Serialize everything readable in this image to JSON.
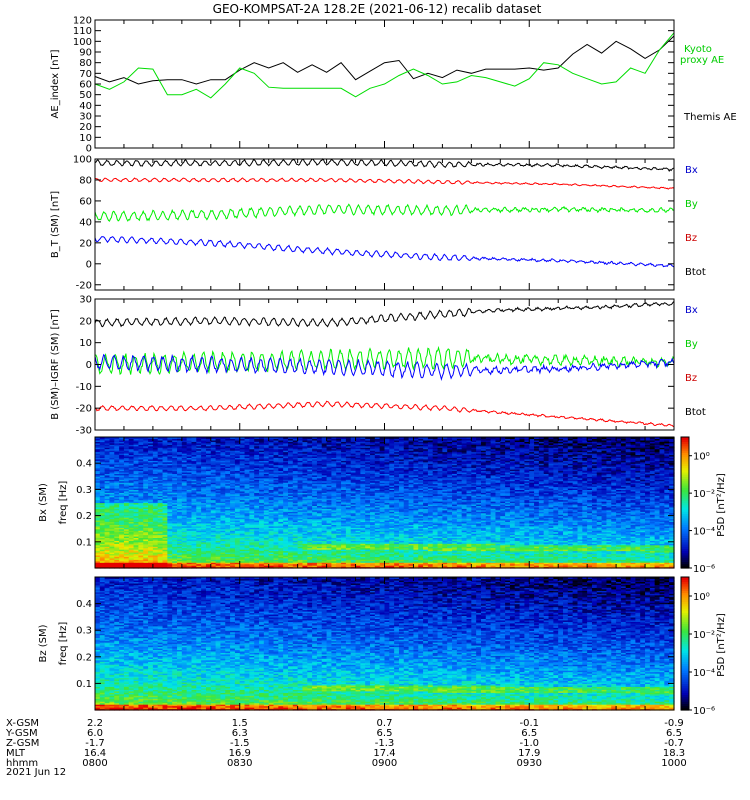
{
  "title": "GEO-KOMPSAT-2A 128.2E (2021-06-12) recalib dataset",
  "date_label": "2021 Jun 12",
  "colorbar": {
    "label": "PSD [nT²/Hz]",
    "ticks": [
      "10⁰",
      "10⁻²",
      "10⁻⁴",
      "10⁻⁶"
    ]
  },
  "chart_data": [
    {
      "id": "ae",
      "type": "line",
      "ylabel": "AE_index [nT]",
      "ylim": [
        0,
        120
      ],
      "yticks": [
        0,
        10,
        20,
        30,
        40,
        50,
        60,
        70,
        80,
        90,
        100,
        110,
        120
      ],
      "x_range_hours": [
        8.0,
        10.0
      ],
      "series": [
        {
          "name": "Themis AE",
          "color": "#000000",
          "points": [
            [
              8.0,
              67
            ],
            [
              8.05,
              62
            ],
            [
              8.1,
              66
            ],
            [
              8.15,
              60
            ],
            [
              8.2,
              63
            ],
            [
              8.25,
              64
            ],
            [
              8.3,
              64
            ],
            [
              8.35,
              60
            ],
            [
              8.4,
              64
            ],
            [
              8.45,
              64
            ],
            [
              8.5,
              73
            ],
            [
              8.55,
              80
            ],
            [
              8.6,
              75
            ],
            [
              8.65,
              80
            ],
            [
              8.7,
              71
            ],
            [
              8.75,
              78
            ],
            [
              8.8,
              71
            ],
            [
              8.85,
              80
            ],
            [
              8.9,
              64
            ],
            [
              8.95,
              72
            ],
            [
              9.0,
              80
            ],
            [
              9.05,
              82
            ],
            [
              9.1,
              65
            ],
            [
              9.15,
              70
            ],
            [
              9.2,
              66
            ],
            [
              9.25,
              73
            ],
            [
              9.3,
              70
            ],
            [
              9.35,
              74
            ],
            [
              9.4,
              74
            ],
            [
              9.45,
              74
            ],
            [
              9.5,
              75
            ],
            [
              9.55,
              73
            ],
            [
              9.6,
              75
            ],
            [
              9.65,
              88
            ],
            [
              9.7,
              97
            ],
            [
              9.75,
              89
            ],
            [
              9.8,
              100
            ],
            [
              9.85,
              93
            ],
            [
              9.9,
              84
            ],
            [
              9.95,
              92
            ],
            [
              10.0,
              105
            ]
          ]
        },
        {
          "name": "Kyoto proxy AE",
          "color": "#00dd00",
          "points": [
            [
              8.0,
              60
            ],
            [
              8.05,
              55
            ],
            [
              8.1,
              62
            ],
            [
              8.15,
              75
            ],
            [
              8.2,
              74
            ],
            [
              8.25,
              50
            ],
            [
              8.3,
              50
            ],
            [
              8.35,
              55
            ],
            [
              8.4,
              47
            ],
            [
              8.45,
              60
            ],
            [
              8.5,
              75
            ],
            [
              8.55,
              70
            ],
            [
              8.6,
              57
            ],
            [
              8.65,
              56
            ],
            [
              8.7,
              56
            ],
            [
              8.75,
              56
            ],
            [
              8.8,
              56
            ],
            [
              8.85,
              56
            ],
            [
              8.9,
              48
            ],
            [
              8.95,
              56
            ],
            [
              9.0,
              60
            ],
            [
              9.05,
              68
            ],
            [
              9.1,
              74
            ],
            [
              9.15,
              68
            ],
            [
              9.2,
              60
            ],
            [
              9.25,
              62
            ],
            [
              9.3,
              68
            ],
            [
              9.35,
              66
            ],
            [
              9.4,
              62
            ],
            [
              9.45,
              58
            ],
            [
              9.5,
              65
            ],
            [
              9.55,
              80
            ],
            [
              9.6,
              78
            ],
            [
              9.65,
              70
            ],
            [
              9.7,
              65
            ],
            [
              9.75,
              60
            ],
            [
              9.8,
              62
            ],
            [
              9.85,
              75
            ],
            [
              9.9,
              70
            ],
            [
              9.95,
              92
            ],
            [
              10.0,
              108
            ]
          ]
        }
      ]
    },
    {
      "id": "b",
      "type": "line",
      "ylabel": "B_T (SM) [nT]",
      "ylim": [
        -25,
        100
      ],
      "yticks": [
        -20,
        0,
        20,
        40,
        60,
        80,
        100
      ],
      "x_range_hours": [
        8.0,
        10.0
      ],
      "series": [
        {
          "name": "Bx",
          "color": "#000000",
          "points": [
            [
              8.0,
              96
            ],
            [
              8.4,
              96
            ],
            [
              8.8,
              97
            ],
            [
              9.2,
              95
            ],
            [
              9.6,
              94
            ],
            [
              10.0,
              90
            ]
          ],
          "wave_amp": 2.5
        },
        {
          "name": "Bz",
          "color": "#ff0000",
          "points": [
            [
              8.0,
              80
            ],
            [
              8.4,
              80
            ],
            [
              8.8,
              80
            ],
            [
              9.2,
              78
            ],
            [
              9.6,
              76
            ],
            [
              10.0,
              72
            ]
          ],
          "wave_amp": 1.5
        },
        {
          "name": "By",
          "color": "#00ee00",
          "points": [
            [
              8.0,
              45
            ],
            [
              8.4,
              47
            ],
            [
              8.8,
              52
            ],
            [
              9.2,
              51
            ],
            [
              9.6,
              52
            ],
            [
              10.0,
              51
            ]
          ],
          "wave_amp": 4
        },
        {
          "name": "Btot",
          "color": "#0000ff",
          "points": [
            [
              8.0,
              24
            ],
            [
              8.4,
              20
            ],
            [
              8.8,
              12
            ],
            [
              9.2,
              6
            ],
            [
              9.6,
              3
            ],
            [
              10.0,
              -2
            ]
          ],
          "wave_amp": 2.5
        }
      ],
      "legend": [
        {
          "label": "Bx",
          "color": "#0000cc"
        },
        {
          "label": "By",
          "color": "#00cc00"
        },
        {
          "label": "Bz",
          "color": "#cc0000"
        },
        {
          "label": "Btot",
          "color": "#000000"
        }
      ]
    },
    {
      "id": "dbB",
      "type": "line",
      "ylabel": "B (SM)–IGRF (SM) [nT]",
      "ylim": [
        -30,
        30
      ],
      "yticks": [
        -30,
        -20,
        -10,
        0,
        10,
        20,
        30
      ],
      "x_range_hours": [
        8.0,
        10.0
      ],
      "series": [
        {
          "name": "Bx",
          "color": "#000000",
          "points": [
            [
              8.0,
              19
            ],
            [
              8.4,
              20
            ],
            [
              8.8,
              19
            ],
            [
              9.1,
              22
            ],
            [
              9.4,
              25
            ],
            [
              9.7,
              26
            ],
            [
              10.0,
              28
            ]
          ],
          "wave_amp": 1.5
        },
        {
          "name": "By",
          "color": "#00ee00",
          "points": [
            [
              8.0,
              0
            ],
            [
              8.4,
              1
            ],
            [
              8.8,
              2
            ],
            [
              9.2,
              3
            ],
            [
              9.6,
              2
            ],
            [
              10.0,
              1
            ]
          ],
          "wave_amp": 4
        },
        {
          "name": "Bz",
          "color": "#0000ff",
          "points": [
            [
              8.0,
              1
            ],
            [
              8.4,
              0
            ],
            [
              8.8,
              -1
            ],
            [
              9.2,
              -3
            ],
            [
              9.6,
              -2
            ],
            [
              10.0,
              1
            ]
          ],
          "wave_amp": 3
        },
        {
          "name": "Btot",
          "color": "#ff0000",
          "points": [
            [
              8.0,
              -20
            ],
            [
              8.4,
              -20
            ],
            [
              8.8,
              -18
            ],
            [
              9.2,
              -20
            ],
            [
              9.6,
              -24
            ],
            [
              10.0,
              -28
            ]
          ],
          "wave_amp": 1
        }
      ],
      "legend": [
        {
          "label": "Bx",
          "color": "#0000cc"
        },
        {
          "label": "By",
          "color": "#00cc00"
        },
        {
          "label": "Bz",
          "color": "#cc0000"
        },
        {
          "label": "Btot",
          "color": "#000000"
        }
      ]
    },
    {
      "id": "spec_bx",
      "type": "heatmap",
      "ylabel_top": "Bx (SM)",
      "ylabel": "freq [Hz]",
      "ylim": [
        0,
        0.5
      ],
      "yticks": [
        0.1,
        0.2,
        0.3,
        0.4
      ],
      "zscale": "log",
      "zrange_log10": [
        -6,
        1
      ],
      "x_range_hours": [
        8.0,
        10.0
      ]
    },
    {
      "id": "spec_bz",
      "type": "heatmap",
      "ylabel_top": "Bz (SM)",
      "ylabel": "freq [Hz]",
      "ylim": [
        0,
        0.5
      ],
      "yticks": [
        0.1,
        0.2,
        0.3,
        0.4
      ],
      "zscale": "log",
      "zrange_log10": [
        -6,
        1
      ],
      "x_range_hours": [
        8.0,
        10.0
      ]
    }
  ],
  "ephemeris": {
    "labels": [
      "X-GSM",
      "Y-GSM",
      "Z-GSM",
      "MLT",
      "hhmm"
    ],
    "columns": [
      {
        "hour": 8.0,
        "values": [
          "2.2",
          "6.0",
          "-1.7",
          "16.4",
          "0800"
        ]
      },
      {
        "hour": 8.5,
        "values": [
          "1.5",
          "6.3",
          "-1.5",
          "16.9",
          "0830"
        ]
      },
      {
        "hour": 9.0,
        "values": [
          "0.7",
          "6.5",
          "-1.3",
          "17.4",
          "0900"
        ]
      },
      {
        "hour": 9.5,
        "values": [
          "-0.1",
          "6.5",
          "-1.0",
          "17.9",
          "0930"
        ]
      },
      {
        "hour": 10.0,
        "values": [
          "-0.9",
          "6.5",
          "-0.7",
          "18.3",
          "1000"
        ]
      }
    ]
  },
  "legend_ae": [
    {
      "label": "Kyoto proxy AE",
      "color": "#00cc00"
    },
    {
      "label": "Themis AE",
      "color": "#000000"
    }
  ]
}
